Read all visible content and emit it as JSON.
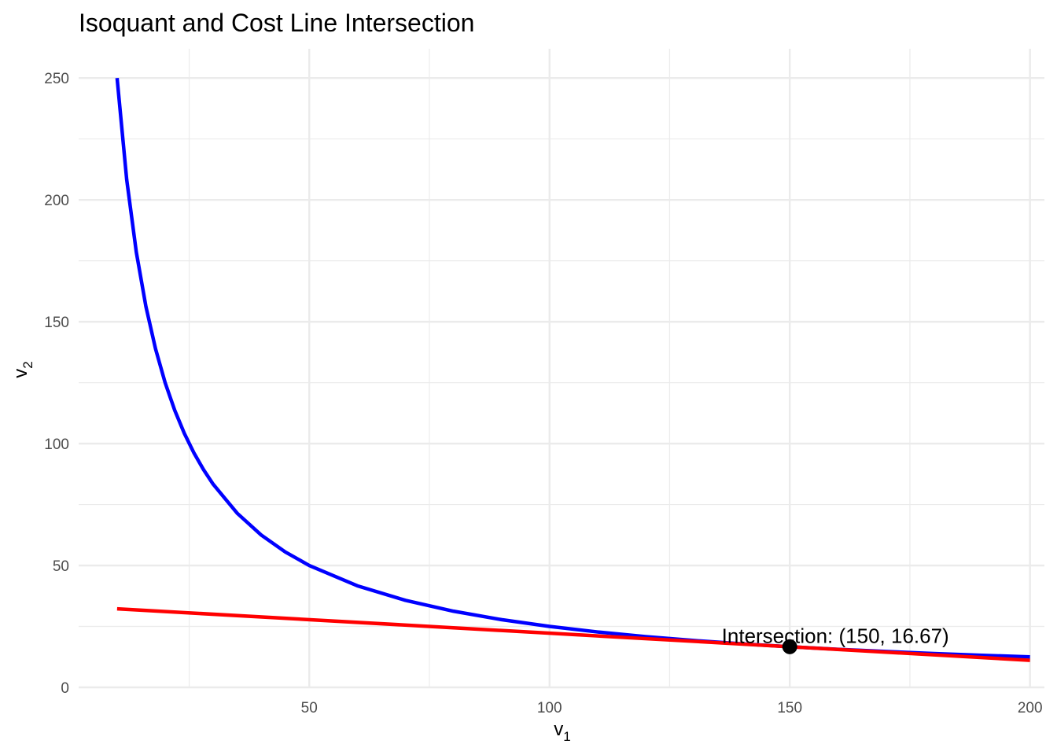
{
  "chart_data": {
    "type": "line",
    "title": "Isoquant and Cost Line Intersection",
    "xlabel": {
      "base": "v",
      "sub": "1"
    },
    "ylabel": {
      "base": "v",
      "sub": "2"
    },
    "xlim": [
      2,
      203
    ],
    "ylim": [
      0,
      262
    ],
    "x_ticks": [
      50,
      100,
      150,
      200
    ],
    "y_ticks": [
      0,
      50,
      100,
      150,
      200,
      250
    ],
    "grid": true,
    "series": [
      {
        "color": "#0000ff",
        "x": [
          10,
          12,
          14,
          16,
          18,
          20,
          22,
          24,
          26,
          28,
          30,
          35,
          40,
          45,
          50,
          60,
          70,
          80,
          90,
          100,
          110,
          120,
          130,
          140,
          150,
          160,
          170,
          180,
          190,
          200
        ],
        "y": [
          250,
          208.33,
          178.57,
          156.25,
          138.89,
          125,
          113.64,
          104.17,
          96.15,
          89.29,
          83.33,
          71.43,
          62.5,
          55.56,
          50,
          41.67,
          35.71,
          31.25,
          27.78,
          25,
          22.73,
          20.83,
          19.23,
          17.86,
          16.67,
          15.63,
          14.71,
          13.89,
          13.16,
          12.5
        ]
      },
      {
        "color": "#ff0000",
        "x": [
          10,
          200
        ],
        "y": [
          32.22,
          11.11
        ]
      }
    ],
    "points": [
      {
        "x": 150,
        "y": 16.67,
        "color": "#000000"
      }
    ],
    "annotations": [
      {
        "text": "Intersection: (150, 16.67)",
        "x": 150,
        "y": 16.67
      }
    ]
  }
}
